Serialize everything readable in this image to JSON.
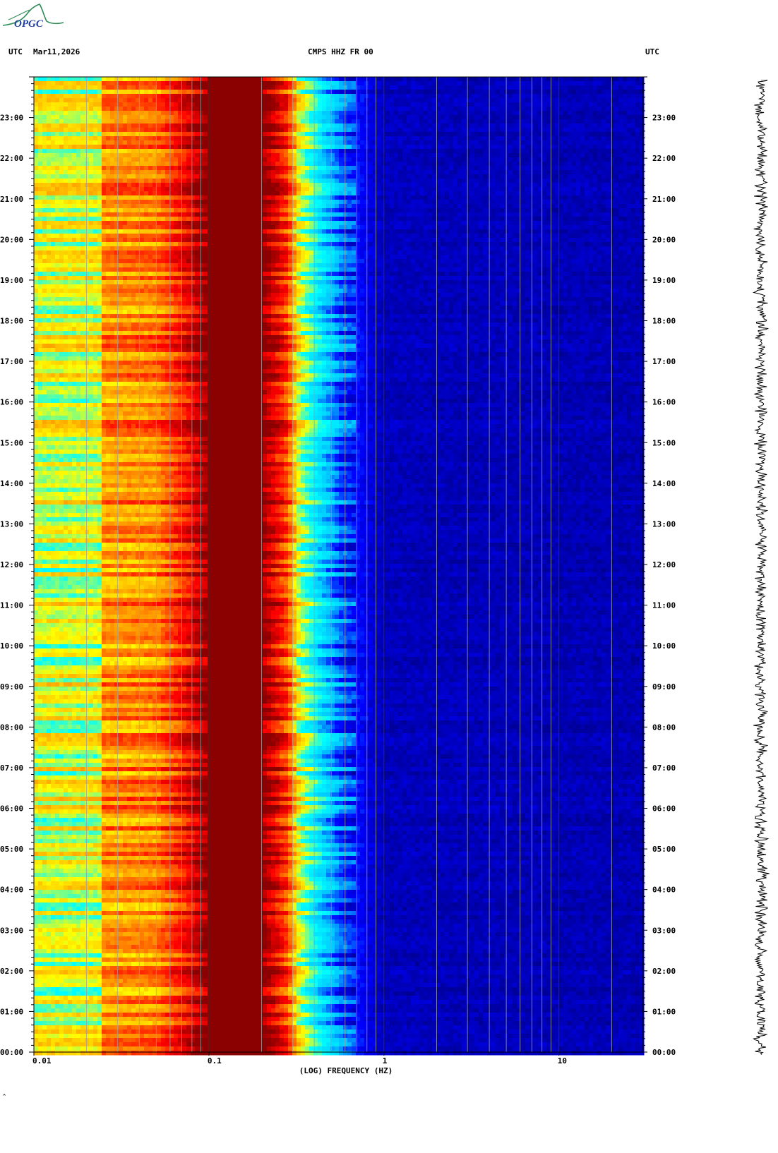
{
  "header": {
    "left_tz": "UTC",
    "date": "Mar11,2026",
    "station": "CMPS HHZ FR 00",
    "right_tz": "UTC"
  },
  "logo": {
    "text": "OPGC"
  },
  "chart_data": {
    "type": "heatmap",
    "title": "CMPS HHZ FR 00",
    "xlabel": "(LOG) FREQUENCY (HZ)",
    "ylabel": "UTC",
    "x_scale": "log",
    "xlim": [
      0.01,
      30
    ],
    "x_ticks": [
      {
        "value": 0.01,
        "label": "0.01"
      },
      {
        "value": 0.1,
        "label": "0.1"
      },
      {
        "value": 1,
        "label": "1"
      },
      {
        "value": 10,
        "label": "10"
      }
    ],
    "ylim_hours": [
      0,
      24
    ],
    "y_ticks": [
      "00:00",
      "01:00",
      "02:00",
      "03:00",
      "04:00",
      "05:00",
      "06:00",
      "07:00",
      "08:00",
      "09:00",
      "10:00",
      "11:00",
      "12:00",
      "13:00",
      "14:00",
      "15:00",
      "16:00",
      "17:00",
      "18:00",
      "19:00",
      "20:00",
      "21:00",
      "22:00",
      "23:00"
    ],
    "colormap": [
      "#00008b",
      "#0000ff",
      "#00c8ff",
      "#00ffff",
      "#ffff00",
      "#ff8c00",
      "#ff0000",
      "#8b0000"
    ],
    "spectral_profile": [
      {
        "freq": 0.01,
        "level": 0.55
      },
      {
        "freq": 0.024,
        "level": 0.56
      },
      {
        "freq": 0.025,
        "level": 0.7
      },
      {
        "freq": 0.05,
        "level": 0.72
      },
      {
        "freq": 0.072,
        "level": 0.85
      },
      {
        "freq": 0.1,
        "level": 1.0
      },
      {
        "freq": 0.2,
        "level": 1.0
      },
      {
        "freq": 0.28,
        "level": 0.8
      },
      {
        "freq": 0.33,
        "level": 0.55
      },
      {
        "freq": 0.42,
        "level": 0.38
      },
      {
        "freq": 0.58,
        "level": 0.2
      },
      {
        "freq": 1,
        "level": 0.06
      },
      {
        "freq": 30,
        "level": 0.05
      }
    ]
  }
}
